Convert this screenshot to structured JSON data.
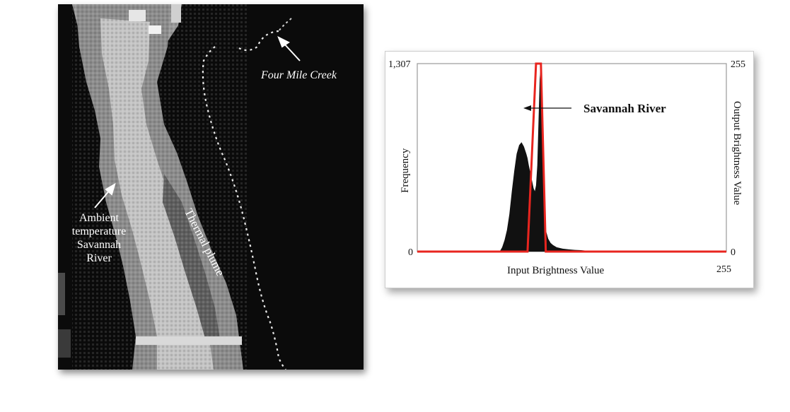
{
  "image": {
    "labels": {
      "ambient": [
        "Ambient",
        "temperature",
        "Savannah",
        "River"
      ],
      "creek": "Four Mile Creek",
      "plume": "Thermal plume"
    }
  },
  "chart_data": {
    "type": "area",
    "title": "",
    "xlabel": "Input Brightness Value",
    "ylabel": "Frequency",
    "ylabel_right": "Output Brightness Value",
    "xlim": [
      0,
      255
    ],
    "ylim": [
      0,
      1307
    ],
    "ylim_right": [
      0,
      255
    ],
    "x_ticks": [
      "",
      "255"
    ],
    "y_ticks": [
      "0",
      "1,307"
    ],
    "y_ticks_right": [
      "0",
      "255"
    ],
    "annotation": "Savannah River",
    "grid": false,
    "colors": {
      "histogram": "#111111",
      "lut": "#e8251f"
    },
    "series": [
      {
        "kind": "histogram",
        "x": [
          0,
          68,
          70,
          72,
          74,
          76,
          78,
          80,
          82,
          84,
          86,
          88,
          90,
          91,
          92,
          93,
          94,
          95,
          96,
          97,
          98,
          99,
          100,
          101,
          102,
          103,
          104,
          105,
          106,
          108,
          110,
          112,
          115,
          120,
          125,
          130,
          135,
          140,
          150,
          255
        ],
        "values": [
          0,
          0,
          30,
          80,
          150,
          260,
          420,
          560,
          680,
          740,
          760,
          730,
          680,
          650,
          600,
          560,
          520,
          480,
          440,
          420,
          460,
          600,
          900,
          1200,
          1307,
          1100,
          700,
          350,
          150,
          90,
          60,
          45,
          30,
          20,
          15,
          12,
          10,
          6,
          0,
          0
        ]
      },
      {
        "kind": "lookup_table",
        "x": [
          0,
          91,
          98,
          101,
          102,
          106,
          255
        ],
        "values": [
          0,
          0,
          255,
          255,
          255,
          0,
          0
        ]
      }
    ]
  }
}
